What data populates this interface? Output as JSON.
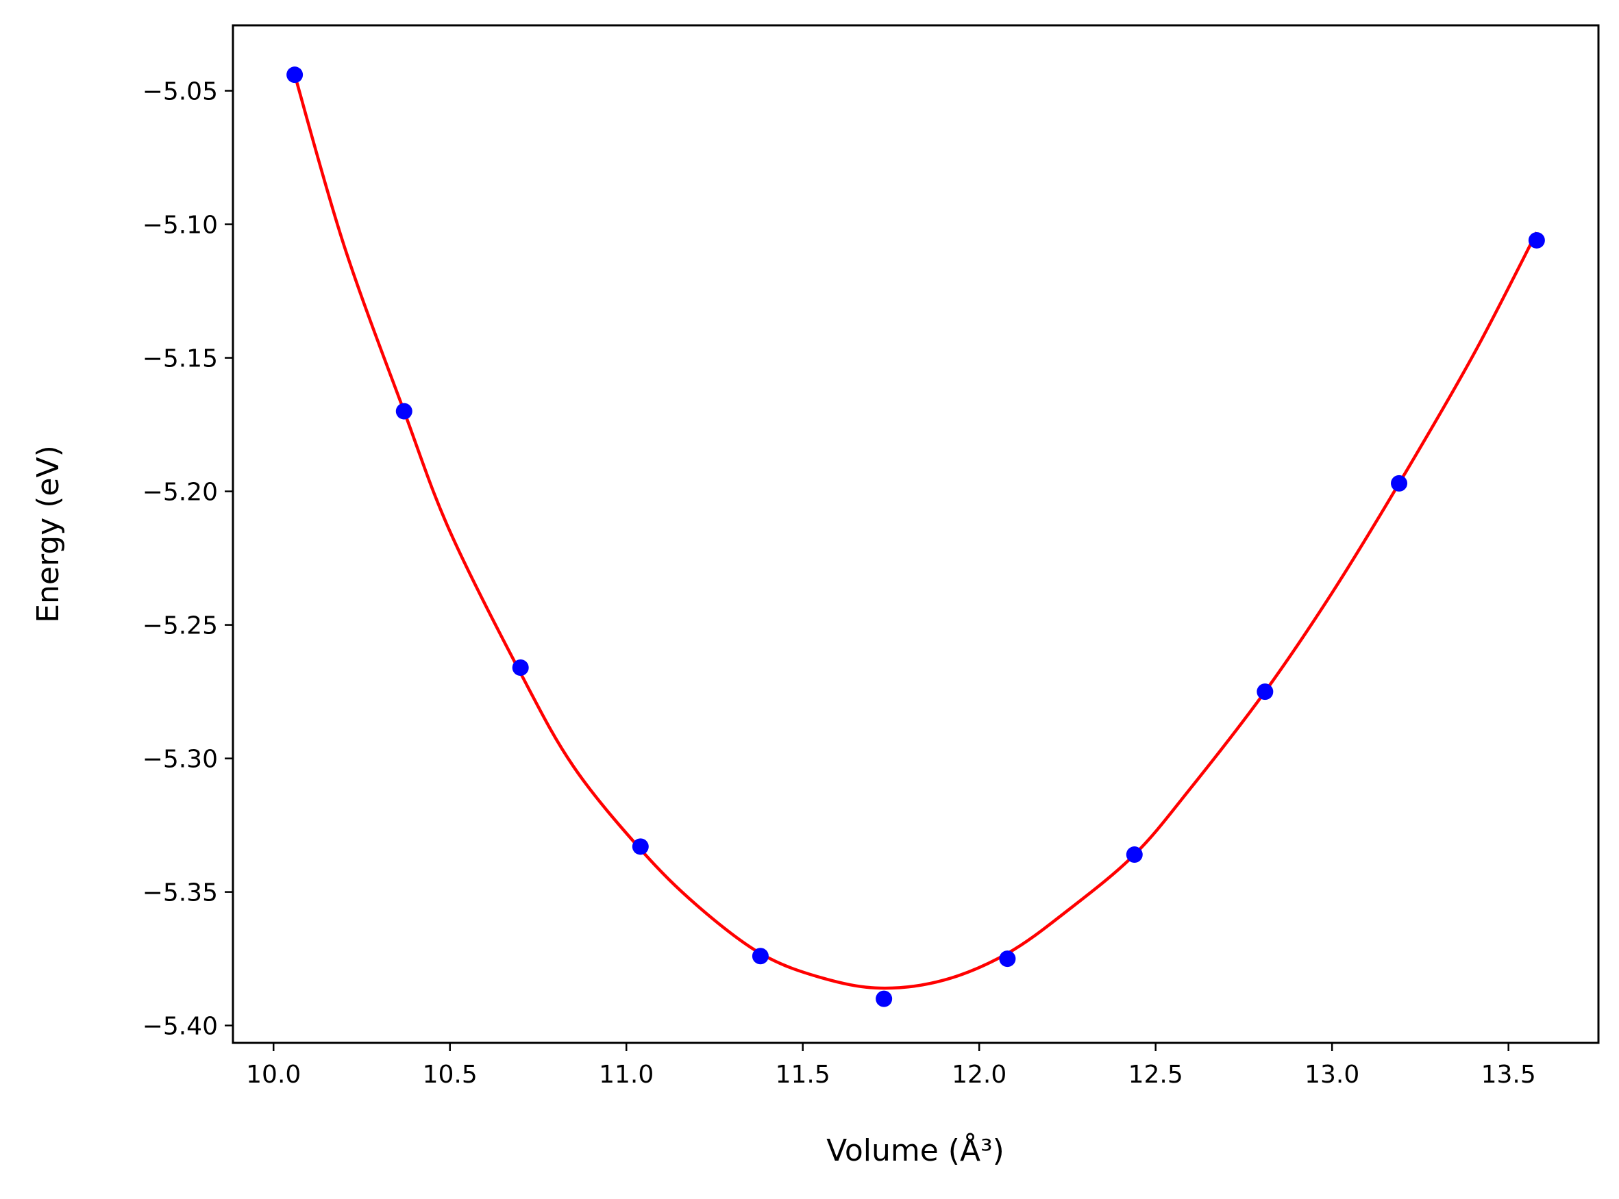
{
  "chart_data": {
    "type": "scatter",
    "title": "",
    "xlabel": "Volume (Å³)",
    "ylabel": "Energy (eV)",
    "xlim": [
      9.885,
      13.755
    ],
    "ylim": [
      -5.4065,
      -5.0255
    ],
    "grid": false,
    "legend": "none",
    "x_ticks": [
      10.0,
      10.5,
      11.0,
      11.5,
      12.0,
      12.5,
      13.0,
      13.5
    ],
    "x_tick_labels": [
      "10.0",
      "10.5",
      "11.0",
      "11.5",
      "12.0",
      "12.5",
      "13.0",
      "13.5"
    ],
    "y_ticks": [
      -5.05,
      -5.1,
      -5.15,
      -5.2,
      -5.25,
      -5.3,
      -5.35,
      -5.4
    ],
    "y_tick_labels": [
      "−5.05",
      "−5.10",
      "−5.15",
      "−5.20",
      "−5.25",
      "−5.30",
      "−5.35",
      "−5.40"
    ],
    "series": [
      {
        "kind": "points",
        "color": "#0000ff",
        "x": [
          10.06,
          10.37,
          10.7,
          11.04,
          11.38,
          11.73,
          12.08,
          12.44,
          12.81,
          13.19,
          13.58
        ],
        "y": [
          -5.044,
          -5.17,
          -5.266,
          -5.333,
          -5.374,
          -5.39,
          -5.375,
          -5.336,
          -5.275,
          -5.197,
          -5.106
        ]
      },
      {
        "kind": "fit-curve",
        "color": "#ff0000",
        "x": [
          10.06,
          10.2,
          10.37,
          10.5,
          10.7,
          10.85,
          11.04,
          11.2,
          11.38,
          11.55,
          11.72,
          11.9,
          12.08,
          12.25,
          12.44,
          12.6,
          12.81,
          13.0,
          13.19,
          13.4,
          13.58
        ],
        "y": [
          -5.044,
          -5.108,
          -5.17,
          -5.215,
          -5.268,
          -5.303,
          -5.334,
          -5.355,
          -5.373,
          -5.382,
          -5.386,
          -5.383,
          -5.373,
          -5.357,
          -5.336,
          -5.311,
          -5.275,
          -5.238,
          -5.197,
          -5.149,
          -5.103
        ]
      }
    ]
  }
}
